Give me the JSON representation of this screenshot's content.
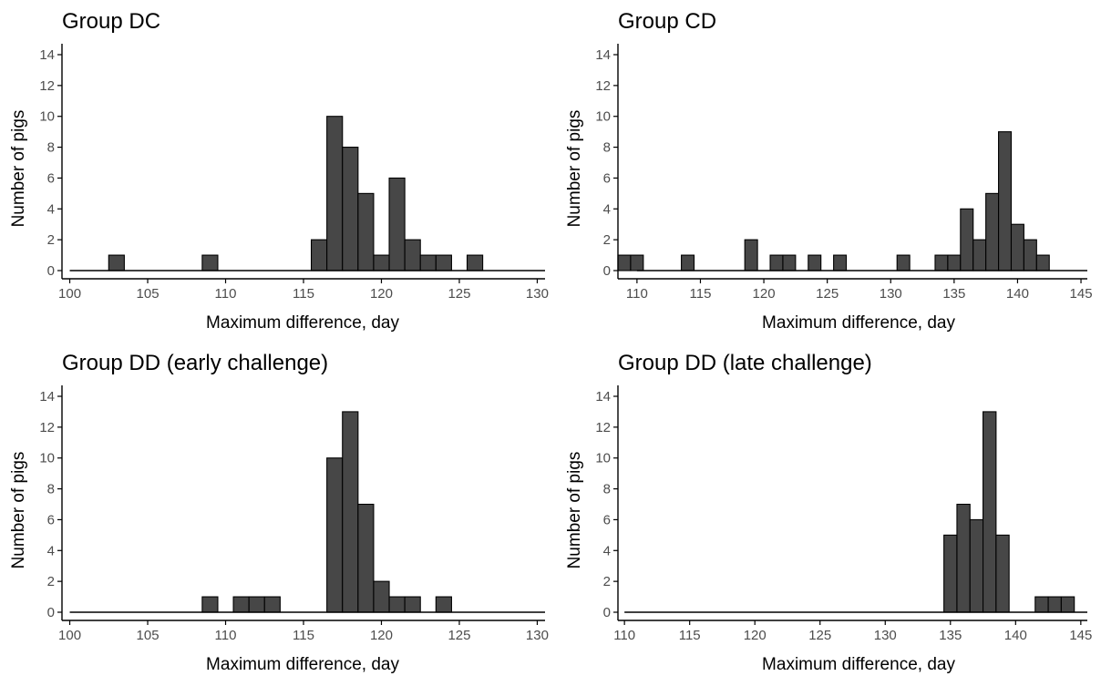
{
  "chart_data": [
    {
      "type": "bar",
      "title": "Group DC",
      "xlabel": "Maximum difference, day",
      "ylabel": "Number of pigs",
      "xlim": [
        99.5,
        130.5
      ],
      "ylim": [
        0,
        14
      ],
      "xticks": [
        100,
        105,
        110,
        115,
        120,
        125,
        130
      ],
      "yticks": [
        0,
        2,
        4,
        6,
        8,
        10,
        12,
        14
      ],
      "binwidth": 1,
      "grid": false,
      "x": [
        103,
        104,
        105,
        106,
        107,
        108,
        109,
        110,
        111,
        112,
        113,
        114,
        115,
        116,
        117,
        118,
        119,
        120,
        121,
        122,
        123,
        124,
        125,
        126,
        127
      ],
      "values": [
        1,
        0,
        0,
        0,
        0,
        0,
        1,
        0,
        0,
        0,
        0,
        0,
        0,
        2,
        10,
        8,
        5,
        1,
        6,
        2,
        1,
        1,
        0,
        1,
        0
      ]
    },
    {
      "type": "bar",
      "title": "Group CD",
      "xlabel": "Maximum difference, day",
      "ylabel": "Number of pigs",
      "xlim": [
        108.5,
        145.5
      ],
      "ylim": [
        0,
        14
      ],
      "xticks": [
        110,
        115,
        120,
        125,
        130,
        135,
        140,
        145
      ],
      "yticks": [
        0,
        2,
        4,
        6,
        8,
        10,
        12,
        14
      ],
      "binwidth": 1,
      "grid": false,
      "x": [
        109,
        110,
        111,
        112,
        113,
        114,
        115,
        116,
        117,
        118,
        119,
        120,
        121,
        122,
        123,
        124,
        125,
        126,
        127,
        128,
        129,
        130,
        131,
        132,
        133,
        134,
        135,
        136,
        137,
        138,
        139,
        140,
        141,
        142,
        143
      ],
      "values": [
        1,
        1,
        0,
        0,
        0,
        1,
        0,
        0,
        0,
        0,
        2,
        0,
        1,
        1,
        0,
        1,
        0,
        1,
        0,
        0,
        0,
        0,
        1,
        0,
        0,
        1,
        1,
        4,
        2,
        5,
        9,
        3,
        2,
        1,
        0
      ]
    },
    {
      "type": "bar",
      "title": "Group DD (early challenge)",
      "xlabel": "Maximum difference, day",
      "ylabel": "Number of pigs",
      "xlim": [
        99.5,
        130.5
      ],
      "ylim": [
        0,
        14
      ],
      "xticks": [
        100,
        105,
        110,
        115,
        120,
        125,
        130
      ],
      "yticks": [
        0,
        2,
        4,
        6,
        8,
        10,
        12,
        14
      ],
      "binwidth": 1,
      "grid": false,
      "x": [
        109,
        110,
        111,
        112,
        113,
        114,
        115,
        116,
        117,
        118,
        119,
        120,
        121,
        122,
        123,
        124,
        125
      ],
      "values": [
        1,
        0,
        1,
        1,
        1,
        0,
        0,
        0,
        10,
        13,
        7,
        2,
        1,
        1,
        0,
        1,
        0
      ]
    },
    {
      "type": "bar",
      "title": "Group DD (late challenge)",
      "xlabel": "Maximum difference, day",
      "ylabel": "Number of pigs",
      "xlim": [
        109.5,
        145.5
      ],
      "ylim": [
        0,
        14
      ],
      "xticks": [
        110,
        115,
        120,
        125,
        130,
        135,
        140,
        145
      ],
      "yticks": [
        0,
        2,
        4,
        6,
        8,
        10,
        12,
        14
      ],
      "binwidth": 1,
      "grid": false,
      "x": [
        135,
        136,
        137,
        138,
        139,
        140,
        141,
        142,
        143,
        144,
        145
      ],
      "values": [
        5,
        7,
        6,
        13,
        5,
        0,
        0,
        1,
        1,
        1,
        0
      ]
    }
  ]
}
